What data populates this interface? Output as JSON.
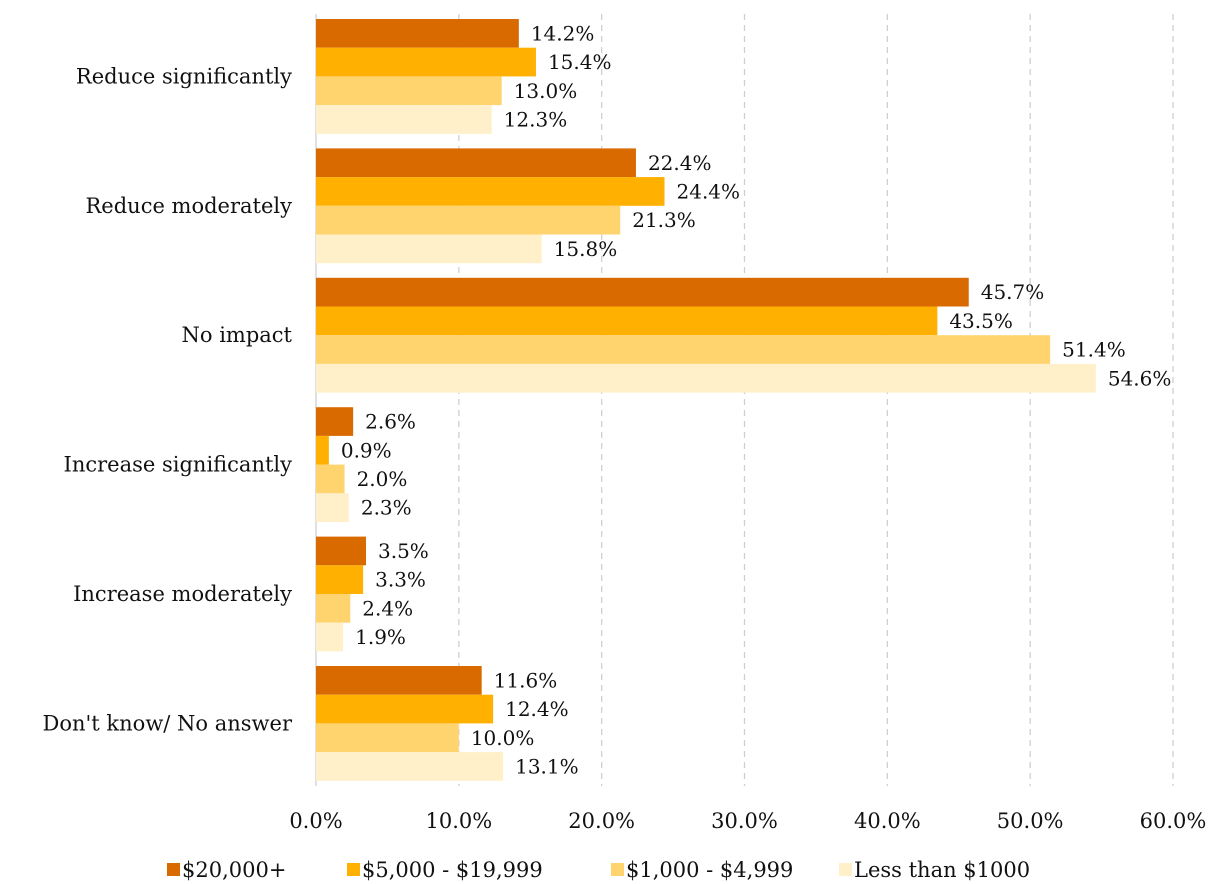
{
  "chart_data": {
    "type": "bar",
    "orientation": "horizontal",
    "categories": [
      "Reduce significantly",
      "Reduce moderately",
      "No impact",
      "Increase significantly",
      "Increase moderately",
      "Don't know/ No answer"
    ],
    "series": [
      {
        "name": "$20,000+",
        "color": "#D86A00",
        "values": [
          14.2,
          22.4,
          45.7,
          2.6,
          3.5,
          11.6
        ],
        "labels": [
          "14.2%",
          "22.4%",
          "45.7%",
          "2.6%",
          "3.5%",
          "11.6%"
        ]
      },
      {
        "name": "$5,000 - $19,999",
        "color": "#FFB000",
        "values": [
          15.4,
          24.4,
          43.5,
          0.9,
          3.3,
          12.4
        ],
        "labels": [
          "15.4%",
          "24.4%",
          "43.5%",
          "0.9%",
          "3.3%",
          "12.4%"
        ]
      },
      {
        "name": "$1,000 - $4,999",
        "color": "#FFD36E",
        "values": [
          13.0,
          21.3,
          51.4,
          2.0,
          2.4,
          10.0
        ],
        "labels": [
          "13.0%",
          "21.3%",
          "51.4%",
          "2.0%",
          "2.4%",
          "10.0%"
        ]
      },
      {
        "name": "Less than $1000",
        "color": "#FFF0C9",
        "values": [
          12.3,
          15.8,
          54.6,
          2.3,
          1.9,
          13.1
        ],
        "labels": [
          "12.3%",
          "15.8%",
          "54.6%",
          "2.3%",
          "1.9%",
          "13.1%"
        ]
      }
    ],
    "xlim": [
      0,
      60
    ],
    "xticks": [
      0,
      10,
      20,
      30,
      40,
      50,
      60
    ],
    "xtick_labels": [
      "0.0%",
      "10.0%",
      "20.0%",
      "30.0%",
      "40.0%",
      "50.0%",
      "60.0%"
    ],
    "grid": true,
    "legend_position": "bottom",
    "title": "",
    "xlabel": "",
    "ylabel": ""
  }
}
